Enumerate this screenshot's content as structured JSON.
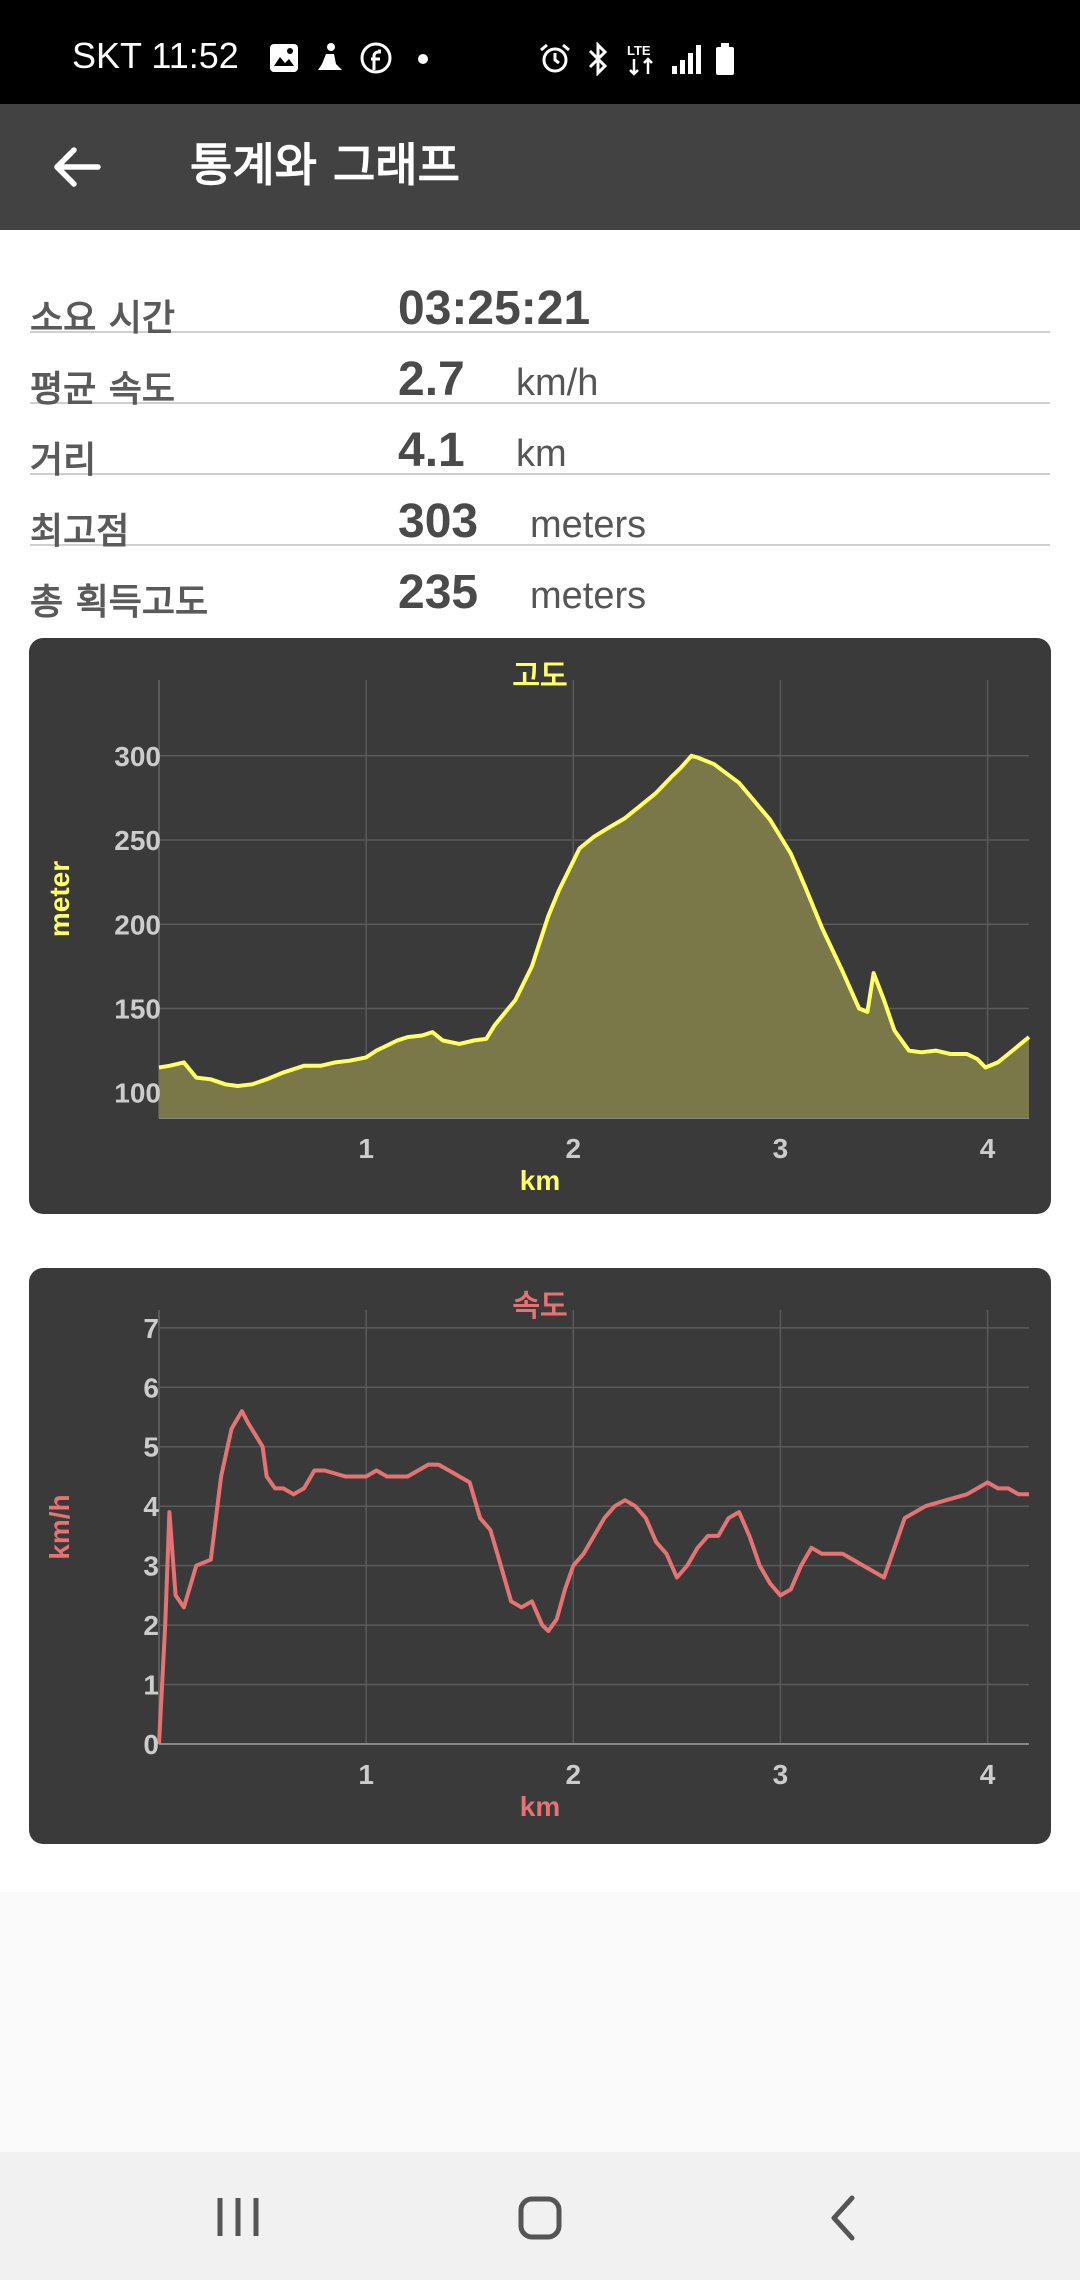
{
  "status_bar": {
    "carrier_time": "SKT 11:52",
    "left_icons": [
      "gallery-icon",
      "hiking-icon",
      "facebook-icon",
      "dot-icon"
    ],
    "right_icons": [
      "alarm-icon",
      "bluetooth-icon",
      "lte-icon",
      "signal-icon",
      "battery-icon"
    ],
    "lte_label": "LTE"
  },
  "app_bar": {
    "title": "통계와 그래프",
    "back_icon": "back-arrow-icon"
  },
  "stats": {
    "duration": {
      "label": "소요 시간",
      "value": "03:25:21",
      "unit": ""
    },
    "avg_speed": {
      "label": "평균 속도",
      "value": "2.7",
      "unit": "km/h"
    },
    "distance": {
      "label": "거리",
      "value": "4.1",
      "unit": "km"
    },
    "max_altitude": {
      "label": "최고점",
      "value": "303",
      "unit": "meters"
    },
    "total_gain": {
      "label": "총 획득고도",
      "value": "235",
      "unit": "meters"
    }
  },
  "colors": {
    "altitude": "#ffff66",
    "altitude_fill": "#7a7848",
    "speed": "#e57373",
    "card_bg": "#3a3a3a",
    "grid": "#5a5a5a",
    "tick": "#cccccc"
  },
  "chart_data": [
    {
      "type": "area",
      "title": "고도",
      "xlabel": "km",
      "ylabel": "meter",
      "xlim": [
        0,
        4.2
      ],
      "ylim": [
        85,
        345
      ],
      "xticks": [
        1,
        2,
        3,
        4
      ],
      "yticks": [
        100,
        150,
        200,
        250,
        300
      ],
      "grid": true,
      "x": [
        0,
        0.05,
        0.12,
        0.18,
        0.25,
        0.32,
        0.38,
        0.45,
        0.52,
        0.6,
        0.7,
        0.78,
        0.85,
        0.92,
        1.0,
        1.05,
        1.1,
        1.15,
        1.2,
        1.27,
        1.32,
        1.37,
        1.45,
        1.52,
        1.58,
        1.62,
        1.66,
        1.72,
        1.8,
        1.88,
        1.93,
        1.97,
        2.03,
        2.1,
        2.18,
        2.25,
        2.32,
        2.4,
        2.47,
        2.52,
        2.57,
        2.6,
        2.68,
        2.8,
        2.95,
        3.05,
        3.12,
        3.2,
        3.3,
        3.38,
        3.42,
        3.45,
        3.5,
        3.55,
        3.62,
        3.68,
        3.75,
        3.82,
        3.9,
        3.95,
        3.99,
        4.05,
        4.1,
        4.15,
        4.2
      ],
      "values": [
        115,
        116,
        118,
        109,
        108,
        105,
        104,
        105,
        108,
        112,
        116,
        116,
        118,
        119,
        121,
        125,
        128,
        131,
        133,
        134,
        136,
        131,
        129,
        131,
        132,
        140,
        146,
        155,
        175,
        205,
        220,
        230,
        245,
        252,
        258,
        263,
        270,
        278,
        287,
        293,
        300,
        299,
        295,
        284,
        262,
        242,
        222,
        198,
        172,
        150,
        148,
        171,
        155,
        137,
        125,
        124,
        125,
        123,
        123,
        120,
        115,
        118,
        123,
        128,
        133
      ]
    },
    {
      "type": "line",
      "title": "속도",
      "xlabel": "km",
      "ylabel": "km/h",
      "xlim": [
        0,
        4.2
      ],
      "ylim": [
        0,
        7.3
      ],
      "xticks": [
        1,
        2,
        3,
        4
      ],
      "yticks": [
        0,
        1,
        2,
        3,
        4,
        5,
        6,
        7
      ],
      "grid": true,
      "x": [
        0,
        0.03,
        0.05,
        0.08,
        0.12,
        0.18,
        0.25,
        0.3,
        0.35,
        0.4,
        0.43,
        0.5,
        0.52,
        0.56,
        0.6,
        0.65,
        0.7,
        0.75,
        0.8,
        0.9,
        1.0,
        1.05,
        1.1,
        1.2,
        1.3,
        1.35,
        1.4,
        1.45,
        1.5,
        1.55,
        1.6,
        1.65,
        1.7,
        1.75,
        1.8,
        1.85,
        1.88,
        1.92,
        1.96,
        2.0,
        2.05,
        2.1,
        2.15,
        2.2,
        2.25,
        2.3,
        2.35,
        2.4,
        2.45,
        2.5,
        2.55,
        2.6,
        2.65,
        2.7,
        2.75,
        2.8,
        2.85,
        2.9,
        2.95,
        3.0,
        3.05,
        3.1,
        3.15,
        3.2,
        3.3,
        3.4,
        3.5,
        3.55,
        3.6,
        3.7,
        3.8,
        3.9,
        4.0,
        4.05,
        4.1,
        4.15,
        4.2
      ],
      "values": [
        0,
        2.0,
        3.9,
        2.5,
        2.3,
        3.0,
        3.1,
        4.5,
        5.3,
        5.6,
        5.4,
        5.0,
        4.5,
        4.3,
        4.3,
        4.2,
        4.3,
        4.6,
        4.6,
        4.5,
        4.5,
        4.6,
        4.5,
        4.5,
        4.7,
        4.7,
        4.6,
        4.5,
        4.4,
        3.8,
        3.6,
        3.0,
        2.4,
        2.3,
        2.4,
        2.0,
        1.9,
        2.1,
        2.6,
        3.0,
        3.2,
        3.5,
        3.8,
        4.0,
        4.1,
        4.0,
        3.8,
        3.4,
        3.2,
        2.8,
        3.0,
        3.3,
        3.5,
        3.5,
        3.8,
        3.9,
        3.5,
        3.0,
        2.7,
        2.5,
        2.6,
        3.0,
        3.3,
        3.2,
        3.2,
        3.0,
        2.8,
        3.3,
        3.8,
        4.0,
        4.1,
        4.2,
        4.4,
        4.3,
        4.3,
        4.2,
        4.2
      ]
    }
  ],
  "nav_bar": {
    "icons": [
      "recent-apps-icon",
      "home-icon",
      "back-icon"
    ]
  }
}
